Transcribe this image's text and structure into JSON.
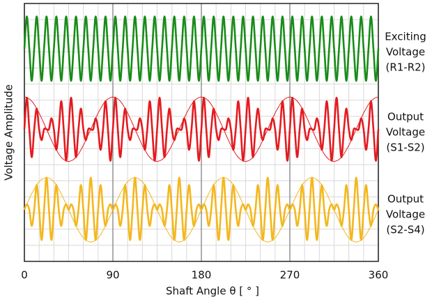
{
  "chart_data": {
    "type": "line",
    "y_label": "Voltage Amplitude",
    "x_label": "Shaft Angle θ [ ° ]",
    "xlim": [
      0,
      360
    ],
    "xticks": [
      0,
      90,
      180,
      270,
      360
    ],
    "ylim": [
      -1.6,
      6.4
    ],
    "grid": true,
    "x": [
      0,
      2.5,
      5,
      7.5,
      10,
      12.5,
      15,
      17.5,
      20,
      22.5,
      25,
      27.5,
      30,
      32.5,
      35,
      37.5,
      40,
      42.5,
      45,
      47.5,
      50,
      52.5,
      55,
      57.5,
      60,
      62.5,
      65,
      67.5,
      70,
      72.5,
      75,
      77.5,
      80,
      82.5,
      85,
      87.5,
      90,
      92.5,
      95,
      97.5,
      100,
      102.5,
      105,
      107.5,
      110,
      112.5,
      115,
      117.5,
      120,
      122.5,
      125,
      127.5,
      130,
      132.5,
      135,
      137.5,
      140,
      142.5,
      145,
      147.5,
      150,
      152.5,
      155,
      157.5,
      160,
      162.5,
      165,
      167.5,
      170,
      172.5,
      175,
      177.5,
      180,
      182.5,
      185,
      187.5,
      190,
      192.5,
      195,
      197.5,
      200,
      202.5,
      205,
      207.5,
      210,
      212.5,
      215,
      217.5,
      220,
      222.5,
      225,
      227.5,
      230,
      232.5,
      235,
      237.5,
      240,
      242.5,
      245,
      247.5,
      250,
      252.5,
      255,
      257.5,
      260,
      262.5,
      265,
      267.5,
      270,
      272.5,
      275,
      277.5,
      280,
      282.5,
      285,
      287.5,
      290,
      292.5,
      295,
      297.5,
      300,
      302.5,
      305,
      307.5,
      310,
      312.5,
      315,
      317.5,
      320,
      322.5,
      325,
      327.5,
      330,
      332.5,
      335,
      337.5,
      340,
      342.5,
      345,
      347.5,
      350,
      352.5,
      355,
      357.5,
      360
    ],
    "series": [
      {
        "name": [
          "Exciting",
          "Voltage",
          "(R1-R2)"
        ],
        "color": "#178c17",
        "width": 2.6,
        "values": [
          5,
          6,
          5,
          4,
          5,
          6,
          5,
          4,
          5,
          6,
          5,
          4,
          5,
          6,
          5,
          4,
          5,
          6,
          5,
          4,
          5,
          6,
          5,
          4,
          5,
          6,
          5,
          4,
          5,
          6,
          5,
          4,
          5,
          6,
          5,
          4,
          5,
          6,
          5,
          4,
          5,
          6,
          5,
          4,
          5,
          6,
          5,
          4,
          5,
          6,
          5,
          4,
          5,
          6,
          5,
          4,
          5,
          6,
          5,
          4,
          5,
          6,
          5,
          4,
          5,
          6,
          5,
          4,
          5,
          6,
          5,
          4,
          5,
          6,
          5,
          4,
          5,
          6,
          5,
          4,
          5,
          6,
          5,
          4,
          5,
          6,
          5,
          4,
          5,
          6,
          5,
          4,
          5,
          6,
          5,
          4,
          5,
          6,
          5,
          4,
          5,
          6,
          5,
          4,
          5,
          6,
          5,
          4,
          5,
          6,
          5,
          4,
          5,
          6,
          5,
          4,
          5,
          6,
          5,
          4,
          5,
          6,
          5,
          4,
          5,
          6,
          5,
          4,
          5,
          6,
          5,
          4,
          5,
          6,
          5,
          4,
          5,
          6,
          5,
          4,
          5,
          6,
          5,
          4,
          5
        ]
      },
      {
        "name": [
          "Output",
          "Voltage",
          "(S1-S2)"
        ],
        "color": "#e51a1f",
        "width": 2.6,
        "values": [
          2.5,
          3.48,
          2.5,
          1.63,
          2.5,
          3.14,
          2.5,
          2.16,
          2.5,
          2.5,
          2.5,
          2.84,
          2.5,
          1.86,
          2.5,
          3.37,
          2.5,
          1.52,
          2.5,
          3.48,
          2.5,
          1.63,
          2.5,
          3.14,
          2.5,
          2.16,
          2.5,
          2.5,
          2.5,
          2.84,
          2.5,
          1.86,
          2.5,
          3.37,
          2.5,
          1.52,
          2.5,
          3.48,
          2.5,
          1.63,
          2.5,
          3.14,
          2.5,
          2.16,
          2.5,
          2.5,
          2.5,
          2.84,
          2.5,
          1.86,
          2.5,
          3.37,
          2.5,
          1.52,
          2.5,
          3.48,
          2.5,
          1.63,
          2.5,
          3.14,
          2.5,
          2.16,
          2.5,
          2.5,
          2.5,
          2.84,
          2.5,
          1.86,
          2.5,
          3.37,
          2.5,
          1.52,
          2.5,
          3.48,
          2.5,
          1.63,
          2.5,
          3.14,
          2.5,
          2.16,
          2.5,
          2.5,
          2.5,
          2.84,
          2.5,
          1.86,
          2.5,
          3.37,
          2.5,
          1.52,
          2.5,
          3.48,
          2.5,
          1.63,
          2.5,
          3.14,
          2.5,
          2.16,
          2.5,
          2.5,
          2.5,
          2.84,
          2.5,
          1.86,
          2.5,
          3.37,
          2.5,
          1.52,
          2.5,
          3.48,
          2.5,
          1.63,
          2.5,
          3.14,
          2.5,
          2.16,
          2.5,
          2.5,
          2.5,
          2.84,
          2.5,
          1.86,
          2.5,
          3.37,
          2.5,
          1.52,
          2.5,
          3.48,
          2.5,
          1.63,
          2.5,
          3.14,
          2.5,
          2.16,
          2.5,
          2.5,
          2.5,
          2.84,
          2.5,
          1.86,
          2.5,
          3.37,
          2.5,
          1.52,
          2.5
        ]
      },
      {
        "color": "#e51a1f",
        "width": 1,
        "values": [
          3.5,
          3.48,
          3.44,
          3.37,
          3.27,
          3.14,
          3,
          2.84,
          2.67,
          2.5,
          2.33,
          2.16,
          2,
          1.86,
          1.73,
          1.63,
          1.56,
          1.52,
          1.5,
          1.52,
          1.56,
          1.63,
          1.73,
          1.86,
          2,
          2.16,
          2.33,
          2.5,
          2.67,
          2.84,
          3,
          3.14,
          3.27,
          3.37,
          3.44,
          3.48,
          3.5,
          3.48,
          3.44,
          3.37,
          3.27,
          3.14,
          3,
          2.84,
          2.67,
          2.5,
          2.33,
          2.16,
          2,
          1.86,
          1.73,
          1.63,
          1.56,
          1.52,
          1.5,
          1.52,
          1.56,
          1.63,
          1.73,
          1.86,
          2,
          2.16,
          2.33,
          2.5,
          2.67,
          2.84,
          3,
          3.14,
          3.27,
          3.37,
          3.44,
          3.48,
          3.5,
          3.48,
          3.44,
          3.37,
          3.27,
          3.14,
          3,
          2.84,
          2.67,
          2.5,
          2.33,
          2.16,
          2,
          1.86,
          1.73,
          1.63,
          1.56,
          1.52,
          1.5,
          1.52,
          1.56,
          1.63,
          1.73,
          1.86,
          2,
          2.16,
          2.33,
          2.5,
          2.67,
          2.84,
          3,
          3.14,
          3.27,
          3.37,
          3.44,
          3.48,
          3.5,
          3.48,
          3.44,
          3.37,
          3.27,
          3.14,
          3,
          2.84,
          2.67,
          2.5,
          2.33,
          2.16,
          2,
          1.86,
          1.73,
          1.63,
          1.56,
          1.52,
          1.5,
          1.52,
          1.56,
          1.63,
          1.73,
          1.86,
          2,
          2.16,
          2.33,
          2.5,
          2.67,
          2.84,
          3,
          3.14,
          3.27,
          3.37,
          3.44,
          3.48,
          3.5
        ]
      },
      {
        "name": [
          "Output",
          "Voltage",
          "(S2-S4)"
        ],
        "color": "#f4b71c",
        "width": 2.6,
        "values": [
          0,
          0.17,
          0,
          -0.5,
          0,
          0.77,
          0,
          -0.94,
          0,
          1,
          0,
          -0.94,
          0,
          0.77,
          0,
          -0.5,
          0,
          0.17,
          0,
          0.17,
          0,
          -0.5,
          0,
          0.77,
          0,
          -0.94,
          0,
          1,
          0,
          -0.94,
          0,
          0.77,
          0,
          -0.5,
          0,
          0.17,
          0,
          0.17,
          0,
          -0.5,
          0,
          0.77,
          0,
          -0.94,
          0,
          1,
          0,
          -0.94,
          0,
          0.77,
          0,
          -0.5,
          0,
          0.17,
          0,
          0.17,
          0,
          -0.5,
          0,
          0.77,
          0,
          -0.94,
          0,
          1,
          0,
          -0.94,
          0,
          0.77,
          0,
          -0.5,
          0,
          0.17,
          0,
          0.17,
          0,
          -0.5,
          0,
          0.77,
          0,
          -0.94,
          0,
          1,
          0,
          -0.94,
          0,
          0.77,
          0,
          -0.5,
          0,
          0.17,
          0,
          0.17,
          0,
          -0.5,
          0,
          0.77,
          0,
          -0.94,
          0,
          1,
          0,
          -0.94,
          0,
          0.77,
          0,
          -0.5,
          0,
          0.17,
          0,
          0.17,
          0,
          -0.5,
          0,
          0.77,
          0,
          -0.94,
          0,
          1,
          0,
          -0.94,
          0,
          0.77,
          0,
          -0.5,
          0,
          0.17,
          0,
          0.17,
          0,
          -0.5,
          0,
          0.77,
          0,
          -0.94,
          0,
          1,
          0,
          -0.94,
          0,
          0.77,
          0,
          -0.5,
          0,
          0.17,
          0
        ]
      },
      {
        "color": "#f4b71c",
        "width": 1,
        "values": [
          0,
          0.17,
          0.34,
          0.5,
          0.64,
          0.77,
          0.87,
          0.94,
          0.98,
          1,
          0.98,
          0.94,
          0.87,
          0.77,
          0.64,
          0.5,
          0.34,
          0.17,
          0,
          -0.17,
          -0.34,
          -0.5,
          -0.64,
          -0.77,
          -0.87,
          -0.94,
          -0.98,
          -1,
          -0.98,
          -0.94,
          -0.87,
          -0.77,
          -0.64,
          -0.5,
          -0.34,
          -0.17,
          0,
          0.17,
          0.34,
          0.5,
          0.64,
          0.77,
          0.87,
          0.94,
          0.98,
          1,
          0.98,
          0.94,
          0.87,
          0.77,
          0.64,
          0.5,
          0.34,
          0.17,
          0,
          -0.17,
          -0.34,
          -0.5,
          -0.64,
          -0.77,
          -0.87,
          -0.94,
          -0.98,
          -1,
          -0.98,
          -0.94,
          -0.87,
          -0.77,
          -0.64,
          -0.5,
          -0.34,
          -0.17,
          0,
          0.17,
          0.34,
          0.5,
          0.64,
          0.77,
          0.87,
          0.94,
          0.98,
          1,
          0.98,
          0.94,
          0.87,
          0.77,
          0.64,
          0.5,
          0.34,
          0.17,
          0,
          -0.17,
          -0.34,
          -0.5,
          -0.64,
          -0.77,
          -0.87,
          -0.94,
          -0.98,
          -1,
          -0.98,
          -0.94,
          -0.87,
          -0.77,
          -0.64,
          -0.5,
          -0.34,
          -0.17,
          0,
          0.17,
          0.34,
          0.5,
          0.64,
          0.77,
          0.87,
          0.94,
          0.98,
          1,
          0.98,
          0.94,
          0.87,
          0.77,
          0.64,
          0.5,
          0.34,
          0.17,
          0,
          -0.17,
          -0.34,
          -0.5,
          -0.64,
          -0.77,
          -0.87,
          -0.94,
          -0.98,
          -1,
          -0.98,
          -0.94,
          -0.87,
          -0.77,
          -0.64,
          -0.5,
          -0.34,
          -0.17,
          0
        ]
      }
    ]
  }
}
